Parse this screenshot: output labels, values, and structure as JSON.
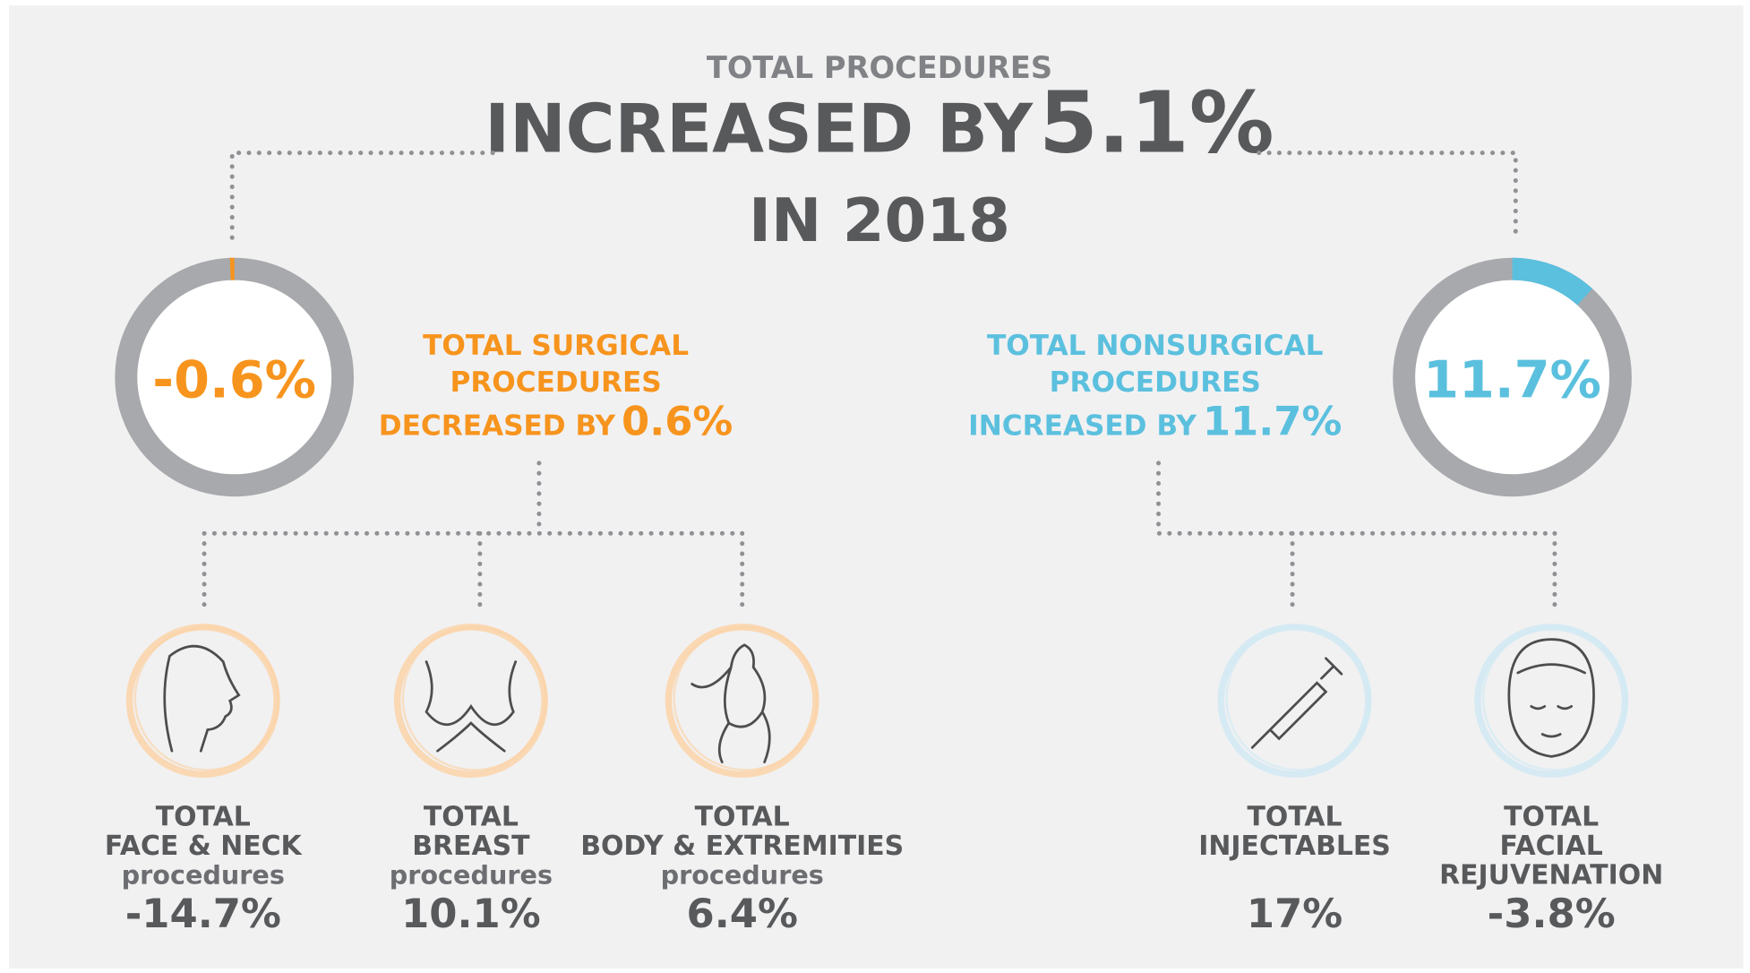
{
  "header": {
    "kicker": "TOTAL PROCEDURES",
    "headline": "INCREASED BY",
    "headline_value": "5.1%",
    "subline": "IN 2018"
  },
  "surgical": {
    "ring": {
      "value": -0.6,
      "label": "-0.6%"
    },
    "lines": [
      "TOTAL SURGICAL",
      "PROCEDURES",
      "DECREASED BY"
    ],
    "change": "0.6%",
    "categories": [
      {
        "title": [
          "TOTAL",
          "FACE & NECK"
        ],
        "subtitle": "procedures",
        "change": "-14.7%"
      },
      {
        "title": [
          "TOTAL",
          "BREAST"
        ],
        "subtitle": "procedures",
        "change": "10.1%"
      },
      {
        "title": [
          "TOTAL",
          "BODY & EXTREMITIES"
        ],
        "subtitle": "procedures",
        "change": "6.4%"
      }
    ]
  },
  "nonsurgical": {
    "ring": {
      "value": 11.7,
      "label": "11.7%"
    },
    "lines": [
      "TOTAL NONSURGICAL",
      "PROCEDURES",
      "INCREASED BY"
    ],
    "change": "11.7%",
    "categories": [
      {
        "title": [
          "TOTAL",
          "INJECTABLES"
        ],
        "change": "17%"
      },
      {
        "title": [
          "TOTAL",
          "FACIAL",
          "REJUVENATION"
        ],
        "change": "-3.8%"
      }
    ]
  }
}
